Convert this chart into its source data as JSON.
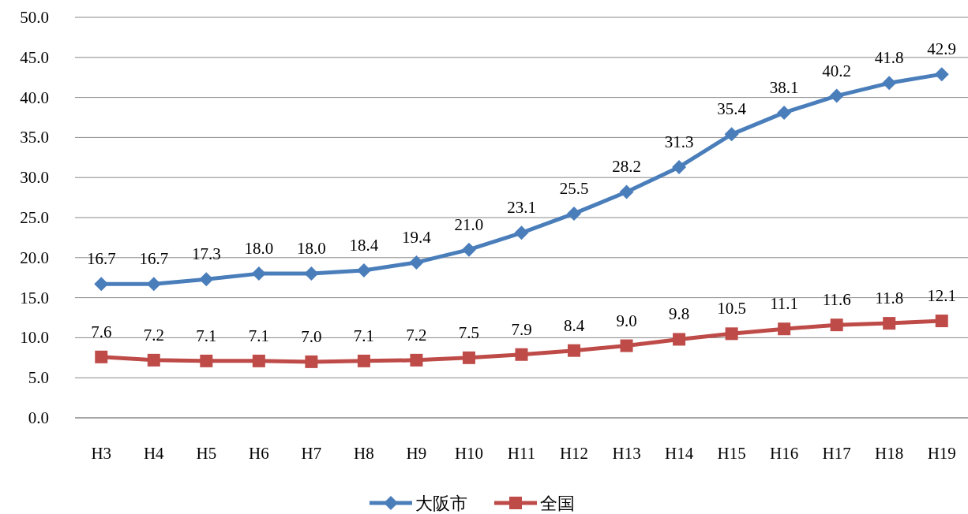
{
  "chart_data": {
    "type": "line",
    "categories": [
      "H3",
      "H4",
      "H5",
      "H6",
      "H7",
      "H8",
      "H9",
      "H10",
      "H11",
      "H12",
      "H13",
      "H14",
      "H15",
      "H16",
      "H17",
      "H18",
      "H19"
    ],
    "series": [
      {
        "name": "大阪市",
        "color": "#4a7ebb",
        "marker": "diamond",
        "values": [
          16.7,
          16.7,
          17.3,
          18.0,
          18.0,
          18.4,
          19.4,
          21.0,
          23.1,
          25.5,
          28.2,
          31.3,
          35.4,
          38.1,
          40.2,
          41.8,
          42.9
        ],
        "value_labels": [
          "16.7",
          "16.7",
          "17.3",
          "18.0",
          "18.0",
          "18.4",
          "19.4",
          "21.0",
          "23.1",
          "25.5",
          "28.2",
          "31.3",
          "35.4",
          "38.1",
          "40.2",
          "41.8",
          "42.9"
        ]
      },
      {
        "name": "全国",
        "color": "#be4b48",
        "marker": "square",
        "values": [
          7.6,
          7.2,
          7.1,
          7.1,
          7.0,
          7.1,
          7.2,
          7.5,
          7.9,
          8.4,
          9.0,
          9.8,
          10.5,
          11.1,
          11.6,
          11.8,
          12.1
        ],
        "value_labels": [
          "7.6",
          "7.2",
          "7.1",
          "7.1",
          "7.0",
          "7.1",
          "7.2",
          "7.5",
          "7.9",
          "8.4",
          "9.0",
          "9.8",
          "10.5",
          "11.1",
          "11.6",
          "11.8",
          "12.1"
        ]
      }
    ],
    "ylim": [
      0,
      50
    ],
    "yticks": [
      {
        "value": 0,
        "label": "0.0"
      },
      {
        "value": 5,
        "label": "5.0"
      },
      {
        "value": 10,
        "label": "10.0"
      },
      {
        "value": 15,
        "label": "15.0"
      },
      {
        "value": 20,
        "label": "20.0"
      },
      {
        "value": 25,
        "label": "25.0"
      },
      {
        "value": 30,
        "label": "30.0"
      },
      {
        "value": 35,
        "label": "35.0"
      },
      {
        "value": 40,
        "label": "40.0"
      },
      {
        "value": 45,
        "label": "45.0"
      },
      {
        "value": 50,
        "label": "50.0"
      }
    ],
    "grid": "y",
    "legend": "bottom",
    "line_style": "solid"
  }
}
